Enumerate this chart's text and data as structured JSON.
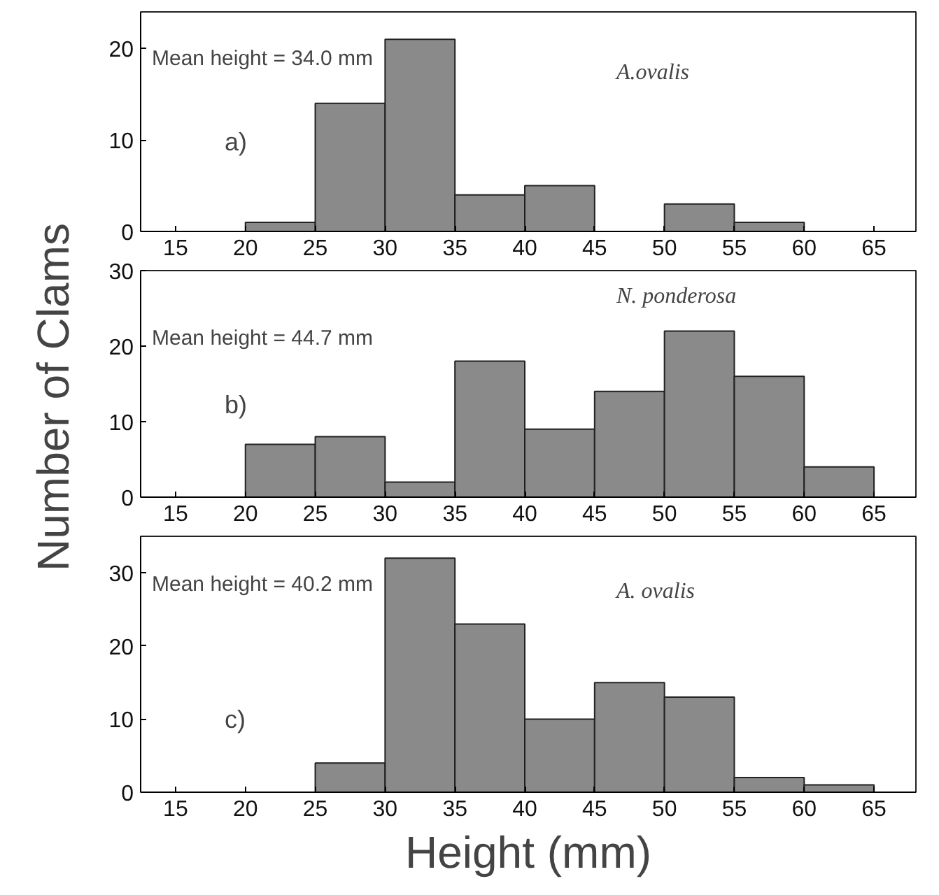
{
  "chart_data": [
    {
      "type": "histogram",
      "bins": [
        20,
        25,
        30,
        35,
        40,
        45,
        50,
        55,
        60
      ],
      "values": [
        1,
        14,
        21,
        4,
        5,
        0,
        3,
        1
      ],
      "color": "#8a8a8a",
      "xlim": [
        12.5,
        68
      ],
      "ylim": [
        0,
        24
      ],
      "xticks": [
        15,
        20,
        25,
        30,
        35,
        40,
        45,
        50,
        55,
        60,
        65
      ],
      "yticks": [
        0,
        10,
        20
      ],
      "grid": false,
      "annotations": [
        "Mean height = 34.0 mm",
        "a)",
        "A.ovalis"
      ]
    },
    {
      "type": "histogram",
      "bins": [
        20,
        25,
        30,
        35,
        40,
        45,
        50,
        55,
        60,
        65
      ],
      "values": [
        7,
        8,
        2,
        18,
        9,
        14,
        22,
        16,
        4
      ],
      "color": "#8a8a8a",
      "xlim": [
        12.5,
        68
      ],
      "ylim": [
        0,
        30
      ],
      "xticks": [
        15,
        20,
        25,
        30,
        35,
        40,
        45,
        50,
        55,
        60,
        65
      ],
      "yticks": [
        0,
        10,
        20,
        30
      ],
      "grid": false,
      "ylabel": "Number of Clams",
      "annotations": [
        "Mean height = 44.7 mm",
        "b)",
        "N. ponderosa"
      ]
    },
    {
      "type": "histogram",
      "bins": [
        25,
        30,
        35,
        40,
        45,
        50,
        55,
        60,
        65
      ],
      "values": [
        4,
        32,
        23,
        10,
        15,
        13,
        2,
        1
      ],
      "color": "#8a8a8a",
      "xlim": [
        12.5,
        68
      ],
      "ylim": [
        0,
        35
      ],
      "xticks": [
        15,
        20,
        25,
        30,
        35,
        40,
        45,
        50,
        55,
        60,
        65
      ],
      "yticks": [
        0,
        10,
        20,
        30
      ],
      "grid": false,
      "xlabel": "Height (mm)",
      "annotations": [
        "Mean height = 40.2 mm",
        "c)",
        "A. ovalis"
      ]
    }
  ]
}
